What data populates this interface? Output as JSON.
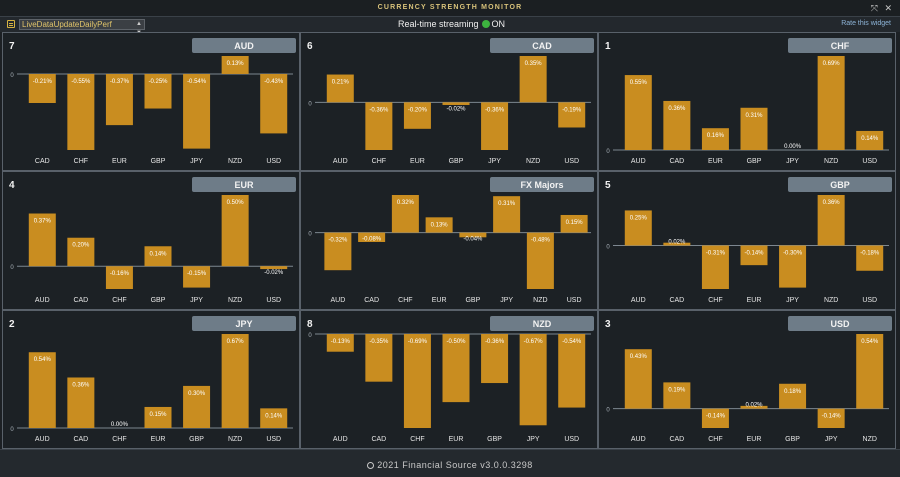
{
  "window": {
    "title": "CURRENCY STRENGTH MONITOR",
    "controls": [
      "expand-icon",
      "close-icon"
    ]
  },
  "toolbar": {
    "workspace_select": "LiveDataUpdateDailyPerf",
    "stream_label": "Real-time streaming",
    "stream_state": "ON",
    "rate_link": "Rate this widget"
  },
  "footer": {
    "copyright": "2021 Financial Source v3.0.0.3298"
  },
  "colors": {
    "bar": "#c98d20",
    "header_badge": "#6e7c88",
    "background": "#1c2024",
    "stream_on": "#3db33f"
  },
  "chart_data": [
    {
      "type": "bar",
      "title": "AUD",
      "rank": "7",
      "categories": [
        "CAD",
        "CHF",
        "EUR",
        "GBP",
        "JPY",
        "NZD",
        "USD"
      ],
      "values": [
        -0.21,
        -0.55,
        -0.37,
        -0.25,
        -0.54,
        0.13,
        -0.43
      ],
      "labels": [
        "-0.21%",
        "-0.55%",
        "-0.37%",
        "-0.25%",
        "-0.54%",
        "0.13%",
        "-0.43%"
      ]
    },
    {
      "type": "bar",
      "title": "CAD",
      "rank": "6",
      "categories": [
        "AUD",
        "CHF",
        "EUR",
        "GBP",
        "JPY",
        "NZD",
        "USD"
      ],
      "values": [
        0.21,
        -0.36,
        -0.2,
        -0.02,
        -0.36,
        0.35,
        -0.19
      ],
      "labels": [
        "0.21%",
        "-0.36%",
        "-0.20%",
        "-0.02%",
        "-0.36%",
        "0.35%",
        "-0.19%"
      ]
    },
    {
      "type": "bar",
      "title": "CHF",
      "rank": "1",
      "categories": [
        "AUD",
        "CAD",
        "EUR",
        "GBP",
        "JPY",
        "NZD",
        "USD"
      ],
      "values": [
        0.55,
        0.36,
        0.16,
        0.31,
        0.0,
        0.69,
        0.14
      ],
      "labels": [
        "0.55%",
        "0.36%",
        "0.16%",
        "0.31%",
        "0.00%",
        "0.69%",
        "0.14%"
      ]
    },
    {
      "type": "bar",
      "title": "EUR",
      "rank": "4",
      "categories": [
        "AUD",
        "CAD",
        "CHF",
        "GBP",
        "JPY",
        "NZD",
        "USD"
      ],
      "values": [
        0.37,
        0.2,
        -0.16,
        0.14,
        -0.15,
        0.5,
        -0.02
      ],
      "labels": [
        "0.37%",
        "0.20%",
        "-0.16%",
        "0.14%",
        "-0.15%",
        "0.50%",
        "-0.02%"
      ]
    },
    {
      "type": "bar",
      "title": "FX Majors",
      "rank": "",
      "categories": [
        "AUD",
        "CAD",
        "CHF",
        "EUR",
        "GBP",
        "JPY",
        "NZD",
        "USD"
      ],
      "values": [
        -0.32,
        -0.08,
        0.32,
        0.13,
        -0.04,
        0.31,
        -0.48,
        0.15
      ],
      "labels": [
        "-0.32%",
        "-0.08%",
        "0.32%",
        "0.13%",
        "-0.04%",
        "0.31%",
        "-0.48%",
        "0.15%"
      ]
    },
    {
      "type": "bar",
      "title": "GBP",
      "rank": "5",
      "categories": [
        "AUD",
        "CAD",
        "CHF",
        "EUR",
        "JPY",
        "NZD",
        "USD"
      ],
      "values": [
        0.25,
        0.02,
        -0.31,
        -0.14,
        -0.3,
        0.36,
        -0.18
      ],
      "labels": [
        "0.25%",
        "0.02%",
        "-0.31%",
        "-0.14%",
        "-0.30%",
        "0.36%",
        "-0.18%"
      ]
    },
    {
      "type": "bar",
      "title": "JPY",
      "rank": "2",
      "categories": [
        "AUD",
        "CAD",
        "CHF",
        "EUR",
        "GBP",
        "NZD",
        "USD"
      ],
      "values": [
        0.54,
        0.36,
        0.0,
        0.15,
        0.3,
        0.67,
        0.14
      ],
      "labels": [
        "0.54%",
        "0.36%",
        "0.00%",
        "0.15%",
        "0.30%",
        "0.67%",
        "0.14%"
      ]
    },
    {
      "type": "bar",
      "title": "NZD",
      "rank": "8",
      "categories": [
        "AUD",
        "CAD",
        "CHF",
        "EUR",
        "GBP",
        "JPY",
        "USD"
      ],
      "values": [
        -0.13,
        -0.35,
        -0.69,
        -0.5,
        -0.36,
        -0.67,
        -0.54
      ],
      "labels": [
        "-0.13%",
        "-0.35%",
        "-0.69%",
        "-0.50%",
        "-0.36%",
        "-0.67%",
        "-0.54%"
      ]
    },
    {
      "type": "bar",
      "title": "USD",
      "rank": "3",
      "categories": [
        "AUD",
        "CAD",
        "CHF",
        "EUR",
        "GBP",
        "JPY",
        "NZD"
      ],
      "values": [
        0.43,
        0.19,
        -0.14,
        0.02,
        0.18,
        -0.14,
        0.54
      ],
      "labels": [
        "0.43%",
        "0.19%",
        "-0.14%",
        "0.02%",
        "0.18%",
        "-0.14%",
        "0.54%"
      ]
    }
  ]
}
